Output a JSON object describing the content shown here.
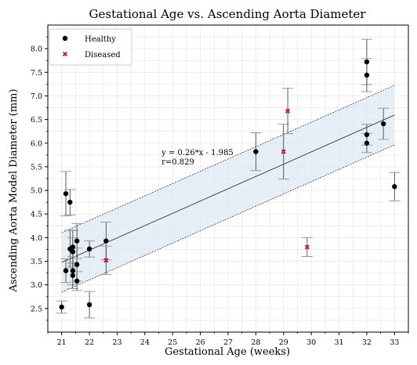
{
  "chart_data": {
    "type": "scatter",
    "title": "Gestational Age vs. Ascending Aorta Diameter",
    "xlabel": "Gestational Age (weeks)",
    "ylabel": "Ascending Aorta Model Diameter (mm)",
    "xlim": [
      20.5,
      33.5
    ],
    "ylim": [
      2.0,
      8.5
    ],
    "xticks": [
      21,
      22,
      23,
      24,
      25,
      26,
      27,
      28,
      29,
      30,
      31,
      32,
      33
    ],
    "xtick_labels": [
      "21",
      "22",
      "23",
      "24",
      "25",
      "26",
      "27",
      "28",
      "29",
      "30",
      "31",
      "32",
      "33"
    ],
    "yticks": [
      2.5,
      3.0,
      3.5,
      4.0,
      4.5,
      5.0,
      5.5,
      6.0,
      6.5,
      7.0,
      7.5,
      8.0
    ],
    "ytick_labels": [
      "2.5",
      "3.0",
      "3.5",
      "4.0",
      "4.5",
      "5.0",
      "5.5",
      "6.0",
      "6.5",
      "7.0",
      "7.5",
      "8.0"
    ],
    "grid": true,
    "legend_position": "top-left",
    "annotation": {
      "lines": [
        "y = 0.26*x - 1.985",
        "r=0.829"
      ],
      "x": 24.6,
      "y": 5.75
    },
    "fit": {
      "slope": 0.26,
      "intercept": -1.985,
      "band": 0.63,
      "x_range": [
        21,
        33
      ]
    },
    "series": [
      {
        "name": "Healthy",
        "marker": "circle",
        "color": "#000000",
        "points": [
          {
            "x": 21.0,
            "y": 2.53,
            "err": 0.13
          },
          {
            "x": 21.15,
            "y": 4.93,
            "err": 0.47
          },
          {
            "x": 21.15,
            "y": 3.3,
            "err": 0.25
          },
          {
            "x": 21.3,
            "y": 4.75,
            "err": 0.27
          },
          {
            "x": 21.3,
            "y": 3.76,
            "err": 0.4
          },
          {
            "x": 21.4,
            "y": 3.8,
            "err": 0.35
          },
          {
            "x": 21.4,
            "y": 3.7,
            "err": 0.3
          },
          {
            "x": 21.4,
            "y": 3.3,
            "err": 0.3
          },
          {
            "x": 21.4,
            "y": 3.2,
            "err": 0.28
          },
          {
            "x": 21.55,
            "y": 3.93,
            "err": 0.37
          },
          {
            "x": 21.55,
            "y": 3.43,
            "err": 0.35
          },
          {
            "x": 21.55,
            "y": 3.08,
            "err": 0.2
          },
          {
            "x": 22.0,
            "y": 3.76,
            "err": 0.17
          },
          {
            "x": 22.0,
            "y": 2.58,
            "err": 0.28
          },
          {
            "x": 22.6,
            "y": 3.93,
            "err": 0.4
          },
          {
            "x": 28.0,
            "y": 5.82,
            "err": 0.4
          },
          {
            "x": 32.0,
            "y": 7.72,
            "err": 0.48
          },
          {
            "x": 32.0,
            "y": 7.44,
            "err": 0.35
          },
          {
            "x": 32.0,
            "y": 6.18,
            "err": 0.22
          },
          {
            "x": 32.0,
            "y": 6.0,
            "err": 0.2
          },
          {
            "x": 32.6,
            "y": 6.41,
            "err": 0.33
          },
          {
            "x": 33.0,
            "y": 5.08,
            "err": 0.3
          }
        ]
      },
      {
        "name": "Diseased",
        "marker": "x",
        "color": "#c2185b",
        "points": [
          {
            "x": 22.6,
            "y": 3.52,
            "err": 0.3
          },
          {
            "x": 29.0,
            "y": 5.82,
            "err": 0.58
          },
          {
            "x": 29.15,
            "y": 6.68,
            "err": 0.48
          },
          {
            "x": 29.85,
            "y": 3.8,
            "err": 0.2
          }
        ]
      }
    ]
  }
}
